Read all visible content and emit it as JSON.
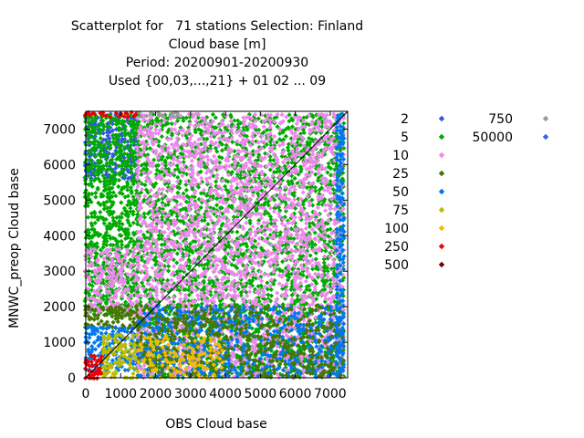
{
  "chart_data": {
    "type": "scatter",
    "title_lines": [
      "Scatterplot for   71 stations Selection: Finland",
      "Cloud base [m]",
      "Period: 20200901-20200930",
      "Used {00,03,...,21} + 01 02 ... 09"
    ],
    "xlabel": "OBS Cloud base",
    "ylabel": "MNWC_preop Cloud base",
    "xlim": [
      0,
      7500
    ],
    "ylim": [
      0,
      7500
    ],
    "x_ticks": [
      0,
      1000,
      2000,
      3000,
      4000,
      5000,
      6000,
      7000
    ],
    "y_ticks": [
      0,
      1000,
      2000,
      3000,
      4000,
      5000,
      6000,
      7000
    ],
    "x_tick_labels": [
      "0",
      "1000",
      "2000",
      "3000",
      "4000",
      "5000",
      "6000",
      "7000"
    ],
    "y_tick_labels": [
      "0",
      "1000",
      "2000",
      "3000",
      "4000",
      "5000",
      "6000",
      "7000"
    ],
    "diagonal_line": true,
    "legend_placement": "right",
    "legend": [
      {
        "name": "2",
        "color": "#3355dd"
      },
      {
        "name": "5",
        "color": "#00aa00"
      },
      {
        "name": "10",
        "color": "#ee88ee"
      },
      {
        "name": "25",
        "color": "#447700"
      },
      {
        "name": "50",
        "color": "#0077ee"
      },
      {
        "name": "75",
        "color": "#bbbb00"
      },
      {
        "name": "100",
        "color": "#eebb00"
      },
      {
        "name": "250",
        "color": "#ee0000"
      },
      {
        "name": "500",
        "color": "#770000"
      },
      {
        "name": "750",
        "color": "#999999"
      },
      {
        "name": "50000",
        "color": "#3366ee"
      }
    ],
    "density_regions": [
      {
        "x": [
          0,
          1500
        ],
        "y": [
          5600,
          7400
        ],
        "color": "#3355dd",
        "density": 1.0
      },
      {
        "x": [
          0,
          1500
        ],
        "y": [
          1800,
          7400
        ],
        "color": "#00aa00",
        "density": 1.0
      },
      {
        "x": [
          0,
          1500
        ],
        "y": [
          1800,
          3600
        ],
        "color": "#ee88ee",
        "density": 0.8
      },
      {
        "x": [
          0,
          1500
        ],
        "y": [
          1400,
          2000
        ],
        "color": "#447700",
        "density": 1.0
      },
      {
        "x": [
          0,
          1500
        ],
        "y": [
          200,
          1400
        ],
        "color": "#0077ee",
        "density": 1.0
      },
      {
        "x": [
          500,
          1500
        ],
        "y": [
          0,
          1200
        ],
        "color": "#bbbb00",
        "density": 1.0
      },
      {
        "x": [
          0,
          500
        ],
        "y": [
          0,
          600
        ],
        "color": "#ee0000",
        "density": 1.0
      },
      {
        "x": [
          1500,
          7400
        ],
        "y": [
          0,
          7400
        ],
        "color": "#00aa00",
        "density": 0.7
      },
      {
        "x": [
          1500,
          7400
        ],
        "y": [
          0,
          7400
        ],
        "color": "#ee88ee",
        "density": 0.6
      },
      {
        "x": [
          1500,
          7400
        ],
        "y": [
          0,
          2000
        ],
        "color": "#0077ee",
        "density": 0.6
      },
      {
        "x": [
          1500,
          7400
        ],
        "y": [
          0,
          2000
        ],
        "color": "#447700",
        "density": 0.5
      },
      {
        "x": [
          1500,
          4000
        ],
        "y": [
          0,
          1200
        ],
        "color": "#eebb00",
        "density": 0.4
      },
      {
        "x": [
          7200,
          7400
        ],
        "y": [
          0,
          7400
        ],
        "color": "#0077ee",
        "density": 1.0
      },
      {
        "x": [
          0,
          1500
        ],
        "y": [
          7300,
          7450
        ],
        "color": "#ee0000",
        "density": 1.0
      },
      {
        "x": [
          1500,
          3000
        ],
        "y": [
          7300,
          7450
        ],
        "color": "#999999",
        "density": 0.8
      }
    ]
  }
}
